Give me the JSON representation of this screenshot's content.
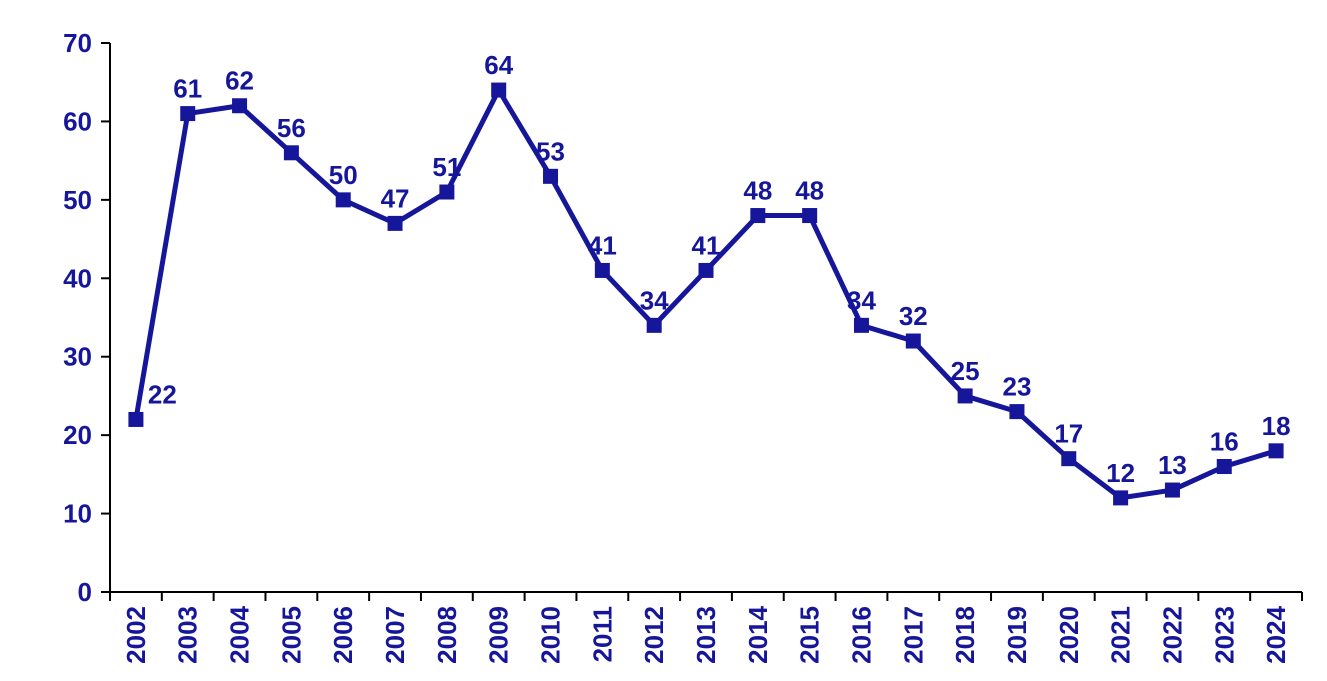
{
  "chart_data": {
    "type": "line",
    "title": "",
    "xlabel": "",
    "ylabel": "",
    "categories": [
      "2002",
      "2003",
      "2004",
      "2005",
      "2006",
      "2007",
      "2008",
      "2009",
      "2010",
      "2011",
      "2012",
      "2013",
      "2014",
      "2015",
      "2016",
      "2017",
      "2018",
      "2019",
      "2020",
      "2021",
      "2022",
      "2023",
      "2024"
    ],
    "values": [
      22,
      61,
      62,
      56,
      50,
      47,
      51,
      64,
      53,
      41,
      34,
      41,
      48,
      48,
      34,
      32,
      25,
      23,
      17,
      12,
      13,
      16,
      18
    ],
    "data_labels": [
      "22",
      "61",
      "62",
      "56",
      "50",
      "47",
      "51",
      "64",
      "53",
      "41",
      "34",
      "41",
      "48",
      "48",
      "34",
      "32",
      "25",
      "23",
      "17",
      "12",
      "13",
      "16",
      "18"
    ],
    "ylim": [
      0,
      70
    ],
    "y_ticks": [
      0,
      10,
      20,
      30,
      40,
      50,
      60,
      70
    ],
    "grid": false,
    "legend_position": "none",
    "marker": "square",
    "data_label_position": "above-points",
    "style": {
      "line_color": "#16169A",
      "marker_color": "#16169A",
      "text_color": "#16169A",
      "axis_color": "#000000",
      "background": "#FFFFFF"
    }
  }
}
